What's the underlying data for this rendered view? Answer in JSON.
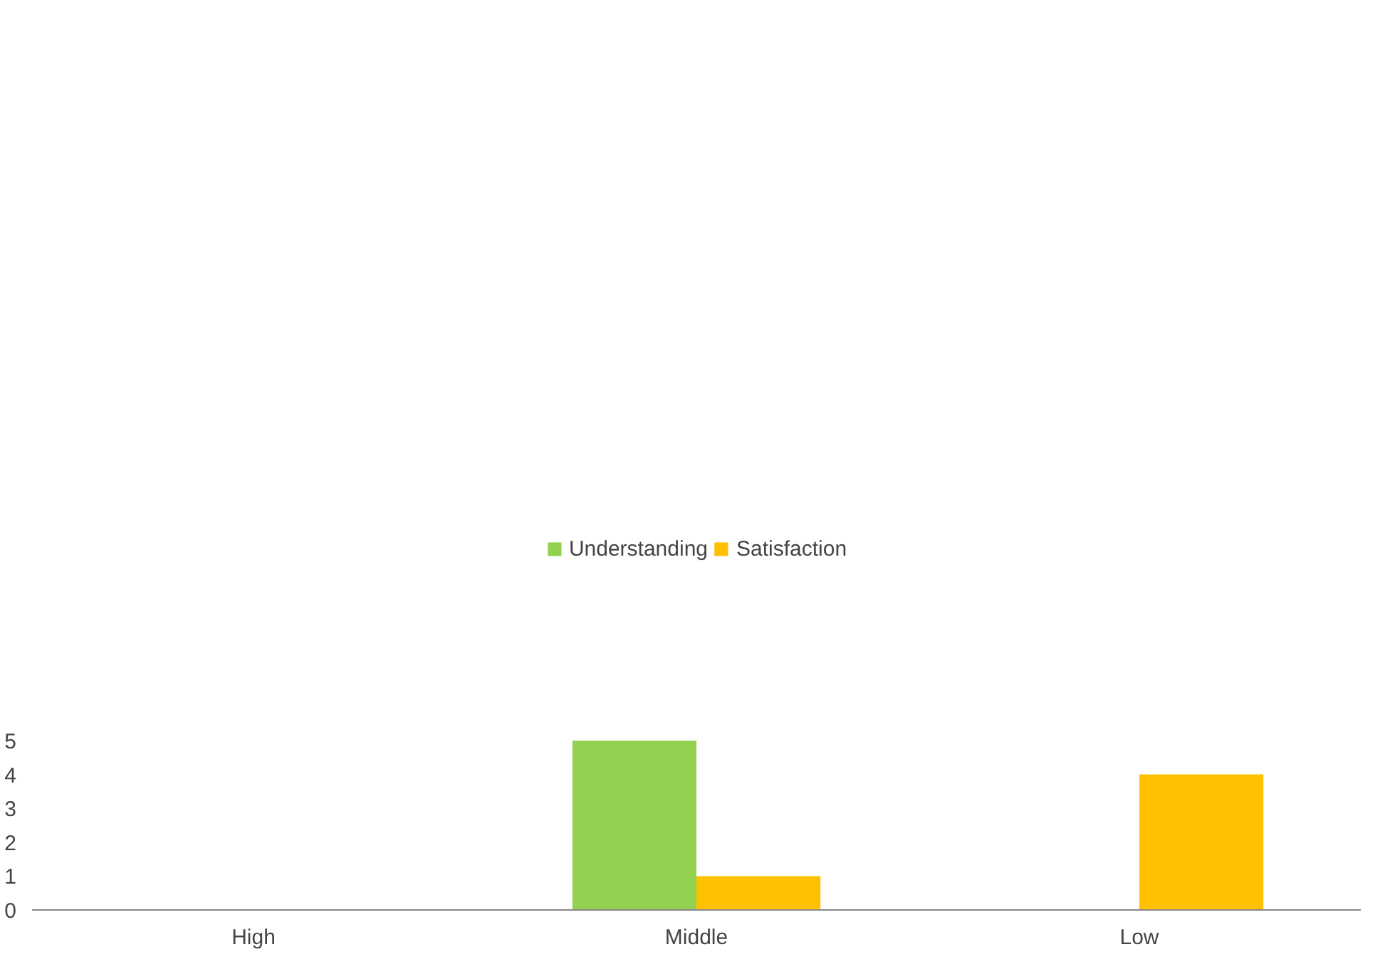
{
  "chart_data": {
    "type": "bar",
    "categories": [
      "High",
      "Middle",
      "Low"
    ],
    "series": [
      {
        "name": "Understanding",
        "color": "#92d050",
        "values": [
          0,
          5,
          0
        ]
      },
      {
        "name": "Satisfaction",
        "color": "#ffc000",
        "values": [
          0,
          1,
          4
        ]
      }
    ],
    "ylim": [
      0,
      5
    ],
    "yticks": [
      0,
      1,
      2,
      3,
      4,
      5
    ],
    "grid": false,
    "legend": "top"
  }
}
